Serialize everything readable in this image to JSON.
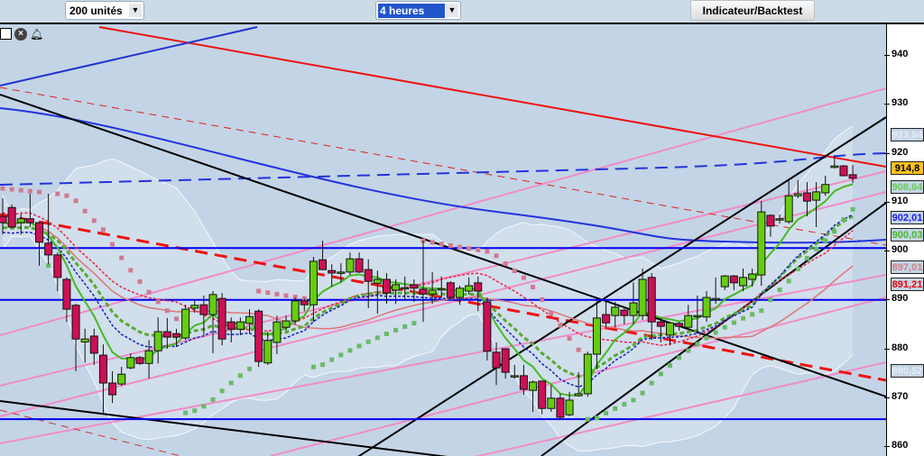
{
  "toolbar": {
    "units_select": "200 unités",
    "period_select": "4 heures",
    "indicator_button": "Indicateur/Backtest"
  },
  "icons": [
    "window-icon",
    "close-icon",
    "alarm-bell-icon"
  ],
  "colors": {
    "up": "#66cc11",
    "down": "#cc1155",
    "bg": "#c3d4e6",
    "accent_blue": "#0000ee",
    "accent_red": "#ee0000"
  },
  "chart_data": {
    "type": "candlestick",
    "title": "",
    "ylim": [
      857,
      945
    ],
    "y_ticks": [
      860,
      870,
      880,
      890,
      900,
      910,
      920,
      930,
      940
    ],
    "grid": false,
    "horizontal_levels": [
      900.5,
      889.9,
      865.5
    ],
    "price_labels": [
      {
        "value": "923,94",
        "color": "#e8eef4",
        "bg": "#c3d4e6"
      },
      {
        "value": "914,8",
        "color": "#000000",
        "bg": "#ffc020"
      },
      {
        "value": "908,64",
        "color": "#66cc55",
        "bg": "#c3d4e6"
      },
      {
        "value": "902,01",
        "color": "#2020ee",
        "bg": "#c3d4e6"
      },
      {
        "value": "900,03",
        "color": "#44bb22",
        "bg": "#c3d4e6"
      },
      {
        "value": "897,01",
        "color": "#d08080",
        "bg": "#c3d4e6"
      },
      {
        "value": "891,21",
        "color": "#ee0000",
        "bg": "#c3d4e6"
      },
      {
        "value": "880,52",
        "color": "#e8eef4",
        "bg": "#c3d4e6"
      }
    ],
    "ohlc": [
      [
        907.0,
        910.7,
        903.3,
        905.7
      ],
      [
        908.8,
        909.4,
        904.6,
        904.8
      ],
      [
        905.7,
        907.6,
        903.3,
        906.5
      ],
      [
        906.5,
        911.6,
        904.8,
        905.7
      ],
      [
        905.7,
        905.9,
        896.9,
        901.7
      ],
      [
        901.5,
        911.6,
        897.2,
        899.1
      ],
      [
        899.1,
        899.6,
        891.7,
        894.5
      ],
      [
        894.1,
        894.5,
        885.4,
        888.0
      ],
      [
        888.8,
        889.1,
        875.3,
        881.9
      ],
      [
        881.3,
        884.0,
        877.0,
        881.9
      ],
      [
        882.5,
        884.0,
        876.6,
        879.0
      ],
      [
        878.6,
        880.8,
        866.8,
        872.9
      ],
      [
        872.9,
        875.3,
        868.8,
        870.5
      ],
      [
        872.7,
        876.2,
        872.3,
        874.7
      ],
      [
        876.0,
        879.0,
        875.7,
        878.1
      ],
      [
        878.1,
        878.4,
        876.6,
        876.9
      ],
      [
        876.9,
        881.7,
        873.8,
        879.5
      ],
      [
        879.5,
        886.3,
        876.9,
        883.4
      ],
      [
        883.4,
        886.2,
        879.9,
        882.3
      ],
      [
        883.0,
        884.0,
        880.3,
        882.3
      ],
      [
        882.1,
        888.9,
        881.7,
        888.0
      ],
      [
        888.2,
        890.0,
        887.3,
        888.8
      ],
      [
        888.9,
        890.8,
        882.7,
        886.9
      ],
      [
        886.9,
        891.7,
        879.0,
        891.0
      ],
      [
        890.2,
        891.3,
        880.6,
        881.9
      ],
      [
        885.4,
        886.3,
        881.2,
        883.9
      ],
      [
        883.9,
        886.3,
        882.7,
        885.4
      ],
      [
        885.1,
        888.0,
        883.0,
        886.5
      ],
      [
        887.6,
        888.0,
        876.2,
        877.3
      ],
      [
        877.0,
        883.4,
        876.6,
        881.6
      ],
      [
        881.2,
        886.7,
        878.8,
        885.4
      ],
      [
        884.3,
        886.7,
        883.6,
        885.6
      ],
      [
        885.6,
        890.4,
        884.9,
        889.7
      ],
      [
        889.7,
        890.2,
        887.6,
        888.9
      ],
      [
        888.9,
        898.7,
        885.4,
        897.8
      ],
      [
        898.1,
        902.0,
        896.0,
        896.1
      ],
      [
        895.9,
        897.2,
        892.6,
        895.4
      ],
      [
        895.6,
        897.4,
        893.5,
        895.6
      ],
      [
        895.6,
        899.6,
        895.0,
        898.3
      ],
      [
        898.3,
        899.6,
        895.4,
        895.6
      ],
      [
        896.1,
        898.2,
        888.2,
        893.7
      ],
      [
        893.3,
        895.9,
        887.1,
        894.1
      ],
      [
        894.1,
        895.4,
        889.1,
        891.3
      ],
      [
        891.9,
        894.1,
        889.1,
        893.0
      ],
      [
        892.4,
        894.7,
        890.0,
        892.4
      ],
      [
        893.0,
        894.1,
        889.5,
        892.3
      ],
      [
        892.1,
        902.0,
        885.4,
        891.1
      ],
      [
        891.1,
        895.6,
        889.1,
        891.9
      ],
      [
        892.2,
        894.7,
        890.4,
        892.2
      ],
      [
        893.4,
        893.7,
        890.0,
        890.4
      ],
      [
        890.4,
        892.8,
        888.9,
        892.3
      ],
      [
        891.7,
        894.5,
        891.0,
        892.8
      ],
      [
        893.4,
        894.7,
        887.6,
        891.7
      ],
      [
        889.5,
        890.4,
        877.5,
        879.4
      ],
      [
        879.2,
        881.2,
        872.5,
        876.0
      ],
      [
        879.9,
        879.9,
        873.8,
        875.1
      ],
      [
        874.4,
        876.6,
        873.8,
        874.4
      ],
      [
        874.4,
        876.6,
        870.5,
        871.6
      ],
      [
        871.4,
        873.4,
        867.0,
        873.1
      ],
      [
        873.3,
        873.3,
        866.5,
        867.7
      ],
      [
        867.7,
        872.5,
        867.0,
        869.8
      ],
      [
        869.8,
        870.7,
        865.5,
        865.9
      ],
      [
        866.4,
        871.1,
        866.1,
        869.4
      ],
      [
        870.3,
        875.1,
        870.1,
        870.7
      ],
      [
        870.7,
        879.3,
        870.1,
        878.8
      ],
      [
        878.8,
        889.9,
        875.7,
        886.2
      ],
      [
        886.9,
        889.5,
        884.3,
        885.2
      ],
      [
        886.7,
        889.5,
        884.3,
        888.4
      ],
      [
        887.8,
        888.6,
        884.9,
        886.7
      ],
      [
        886.7,
        893.5,
        884.9,
        889.3
      ],
      [
        886.7,
        896.3,
        885.8,
        894.1
      ],
      [
        894.5,
        895.4,
        881.7,
        885.4
      ],
      [
        885.4,
        886.2,
        881.2,
        884.5
      ],
      [
        882.7,
        885.4,
        880.6,
        885.2
      ],
      [
        885.1,
        885.4,
        883.6,
        884.5
      ],
      [
        884.3,
        888.9,
        884.3,
        886.7
      ],
      [
        886.7,
        890.8,
        883.0,
        886.7
      ],
      [
        886.4,
        891.7,
        885.4,
        890.4
      ],
      [
        890.2,
        894.5,
        889.1,
        890.2
      ],
      [
        892.6,
        895.0,
        891.9,
        894.8
      ],
      [
        894.8,
        895.0,
        891.9,
        893.4
      ],
      [
        892.8,
        896.3,
        891.7,
        894.5
      ],
      [
        894.1,
        896.3,
        892.6,
        895.2
      ],
      [
        895.0,
        910.1,
        892.8,
        907.9
      ],
      [
        907.2,
        907.4,
        902.8,
        905.0
      ],
      [
        906.5,
        907.4,
        905.5,
        906.5
      ],
      [
        905.9,
        914.4,
        905.5,
        911.2
      ],
      [
        911.2,
        914.4,
        910.7,
        911.6
      ],
      [
        911.8,
        914.0,
        907.0,
        910.1
      ],
      [
        910.3,
        914.0,
        904.8,
        912.0
      ],
      [
        911.8,
        915.3,
        911.2,
        913.5
      ],
      [
        917.0,
        919.3,
        916.8,
        917.3
      ],
      [
        917.3,
        917.5,
        915.3,
        915.3
      ],
      [
        915.5,
        917.5,
        913.8,
        914.8
      ]
    ]
  }
}
